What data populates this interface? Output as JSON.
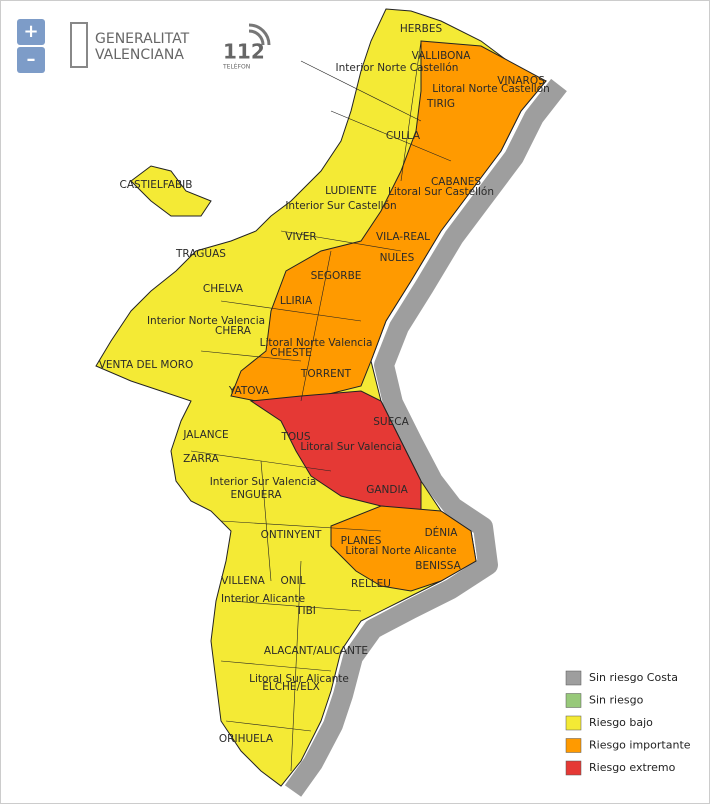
{
  "controls": {
    "zoom_in": "+",
    "zoom_out": "–"
  },
  "logos": {
    "generalitat": [
      "GENERALITAT",
      "VALENCIANA"
    ],
    "emergency": {
      "number": "112",
      "subtitle": "TELÈFON"
    }
  },
  "legend": [
    {
      "label": "Sin riesgo Costa",
      "color": "#9e9e9e"
    },
    {
      "label": "Sin riesgo",
      "color": "#98c97a"
    },
    {
      "label": "Riesgo bajo",
      "color": "#f4ea35"
    },
    {
      "label": "Riesgo importante",
      "color": "#ff9a00"
    },
    {
      "label": "Riesgo extremo",
      "color": "#e53935"
    }
  ],
  "labels": [
    "HERBES",
    "VALLIBONA",
    "Interior Norte Castellón",
    "VINAROS",
    "Litoral Norte Castellón",
    "TIRIG",
    "CULLA",
    "CASTIELFABIB",
    "CABANES",
    "Litoral Sur Castellón",
    "LUDIENTE",
    "Interior Sur Castellón",
    "VIVER",
    "VILA-REAL",
    "NULES",
    "TRAGUAS",
    "SEGORBE",
    "CHELVA",
    "LLIRIA",
    "Interior Norte Valencia",
    "CHERA",
    "Litoral Norte Valencia",
    "CHESTE",
    "VENTA DEL MORO",
    "TORRENT",
    "YATOVA",
    "SUECA",
    "JALANCE",
    "TOUS",
    "Litoral Sur Valencia",
    "ZARRA",
    "Interior Sur Valencia",
    "GANDIA",
    "ENGUERA",
    "ONTINYENT",
    "DÉNIA",
    "PLANES",
    "Litoral Norte Alicante",
    "BENISSA",
    "VILLENA",
    "ONIL",
    "RELLEU",
    "Interior Alicante",
    "TIBI",
    "ALACANT/ALICANTE",
    "Litoral Sur Alicante",
    "ELCHE/ELX",
    "ORIHUELA"
  ]
}
